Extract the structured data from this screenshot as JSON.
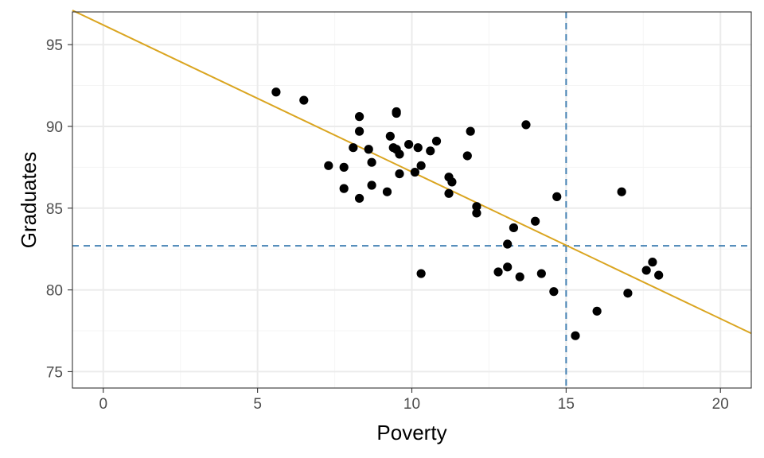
{
  "chart_data": {
    "type": "scatter",
    "title": "",
    "xlabel": "Poverty",
    "ylabel": "Graduates",
    "xlim": [
      -1,
      21
    ],
    "ylim": [
      74,
      97
    ],
    "x_ticks": [
      0,
      5,
      10,
      15,
      20
    ],
    "y_ticks": [
      75,
      80,
      85,
      90,
      95
    ],
    "x_tick_labels": [
      "0",
      "5",
      "10",
      "15",
      "20"
    ],
    "y_tick_labels": [
      "75",
      "80",
      "85",
      "90",
      "95"
    ],
    "grid": true,
    "legend": "none",
    "points": [
      {
        "x": 5.6,
        "y": 92.1
      },
      {
        "x": 6.5,
        "y": 91.6
      },
      {
        "x": 7.3,
        "y": 87.6
      },
      {
        "x": 7.8,
        "y": 87.5
      },
      {
        "x": 7.8,
        "y": 86.2
      },
      {
        "x": 8.1,
        "y": 88.7
      },
      {
        "x": 8.3,
        "y": 90.6
      },
      {
        "x": 8.3,
        "y": 89.7
      },
      {
        "x": 8.3,
        "y": 85.6
      },
      {
        "x": 8.6,
        "y": 88.6
      },
      {
        "x": 8.7,
        "y": 87.8
      },
      {
        "x": 8.7,
        "y": 86.4
      },
      {
        "x": 9.2,
        "y": 86.0
      },
      {
        "x": 9.3,
        "y": 89.4
      },
      {
        "x": 9.4,
        "y": 88.7
      },
      {
        "x": 9.5,
        "y": 90.9
      },
      {
        "x": 9.5,
        "y": 90.8
      },
      {
        "x": 9.5,
        "y": 88.6
      },
      {
        "x": 9.6,
        "y": 88.3
      },
      {
        "x": 9.6,
        "y": 87.1
      },
      {
        "x": 9.9,
        "y": 88.9
      },
      {
        "x": 10.1,
        "y": 87.2
      },
      {
        "x": 10.2,
        "y": 88.7
      },
      {
        "x": 10.3,
        "y": 87.6
      },
      {
        "x": 10.3,
        "y": 81.0
      },
      {
        "x": 10.6,
        "y": 88.5
      },
      {
        "x": 10.8,
        "y": 89.1
      },
      {
        "x": 11.2,
        "y": 86.9
      },
      {
        "x": 11.2,
        "y": 85.9
      },
      {
        "x": 11.3,
        "y": 86.6
      },
      {
        "x": 11.8,
        "y": 88.2
      },
      {
        "x": 11.9,
        "y": 89.7
      },
      {
        "x": 12.1,
        "y": 85.1
      },
      {
        "x": 12.1,
        "y": 84.7
      },
      {
        "x": 12.8,
        "y": 81.1
      },
      {
        "x": 13.1,
        "y": 82.8
      },
      {
        "x": 13.1,
        "y": 81.4
      },
      {
        "x": 13.3,
        "y": 83.8
      },
      {
        "x": 13.5,
        "y": 80.8
      },
      {
        "x": 13.7,
        "y": 90.1
      },
      {
        "x": 14.0,
        "y": 84.2
      },
      {
        "x": 14.2,
        "y": 81.0
      },
      {
        "x": 14.6,
        "y": 79.9
      },
      {
        "x": 14.7,
        "y": 85.7
      },
      {
        "x": 15.3,
        "y": 77.2
      },
      {
        "x": 16.0,
        "y": 78.7
      },
      {
        "x": 16.8,
        "y": 86.0
      },
      {
        "x": 17.0,
        "y": 79.8
      },
      {
        "x": 17.6,
        "y": 81.2
      },
      {
        "x": 17.8,
        "y": 81.7
      },
      {
        "x": 18.0,
        "y": 80.9
      }
    ],
    "trend_line": {
      "slope": -0.898,
      "intercept": 96.2,
      "color": "#DAA520"
    },
    "reference_lines": {
      "vertical_x": 15.0,
      "horizontal_y": 82.7,
      "color": "#4682B4",
      "style": "dashed"
    },
    "colors": {
      "points": "#000000",
      "panel_border": "#333333",
      "grid_major": "#ebebeb",
      "grid_minor": "#f5f5f5"
    }
  }
}
